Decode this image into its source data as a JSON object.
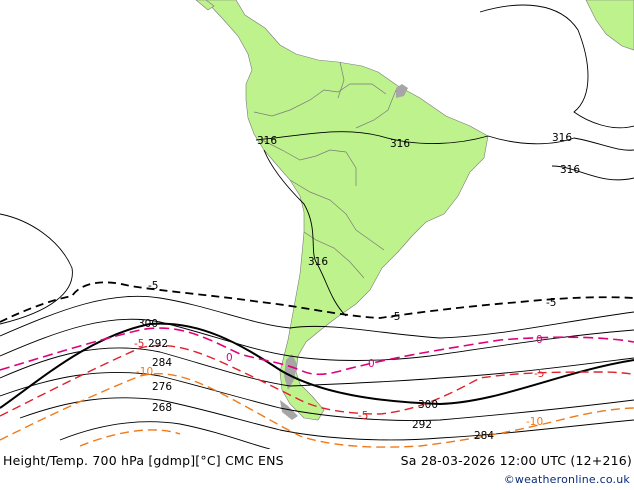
{
  "title_left": "Height/Temp. 700 hPa [gdmp][°C] CMC ENS",
  "title_right": "Sa 28-03-2026 12:00 UTC (12+216)",
  "credit": "©weatheronline.co.uk",
  "colors": {
    "land": "#bef28c",
    "land_grey": "#a6a6a6",
    "border": "#7a7a7a",
    "height_contour": "#000000",
    "temp_neg5": "#000000",
    "temp_0": "#e0007a",
    "temp_neg5_red": "#e0202a",
    "temp_neg10": "#f07a1a"
  },
  "height_labels": [
    "316",
    "316",
    "316",
    "316",
    "316",
    "300",
    "292",
    "284",
    "276",
    "268",
    "300",
    "292",
    "284"
  ],
  "temp_labels": {
    "neg5_black": [
      "-5",
      "-5",
      "-5"
    ],
    "zero": [
      "0",
      "0",
      "0"
    ],
    "neg5_red": [
      "-5",
      "-5",
      "-5"
    ],
    "neg10": [
      "-10",
      "-10"
    ]
  }
}
